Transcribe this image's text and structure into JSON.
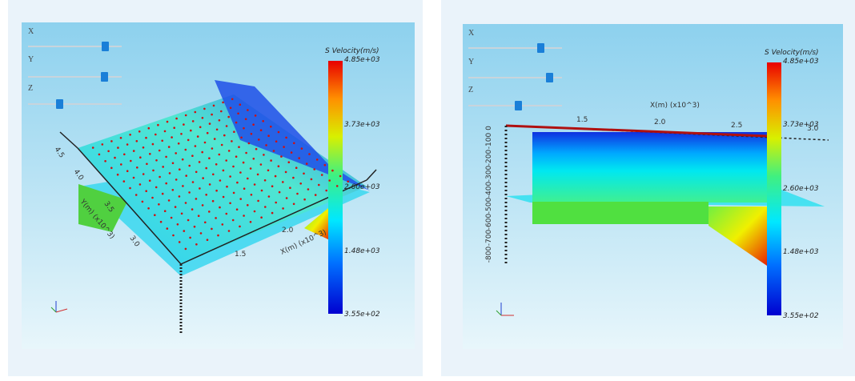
{
  "panels": [
    {
      "sliders": [
        "X",
        "Y",
        "Z"
      ],
      "colorbar": {
        "title": "S Velocity(m/s)",
        "labels": [
          "4.85e+03",
          "3.73e+03",
          "2.60e+03",
          "1.48e+03",
          "3.55e+02"
        ]
      },
      "axes": {
        "x_title": "X(m) (x10^3)",
        "x_ticks": [
          "1.5",
          "2.0"
        ],
        "y_title": "Y(m) (x10^3)",
        "y_ticks": [
          "4.5",
          "4.0",
          "3.5",
          "3.0"
        ]
      }
    },
    {
      "sliders": [
        "X",
        "Y",
        "Z"
      ],
      "colorbar": {
        "title": "S Velocity(m/s)",
        "labels": [
          "4.85e+03",
          "3.73e+03",
          "2.60e+03",
          "1.48e+03",
          "3.55e+02"
        ]
      },
      "axes": {
        "x_title": "X(m) (x10^3)",
        "x_ticks": [
          "1.5",
          "2.0",
          "2.5",
          "3.0"
        ],
        "z_ticks": [
          "0",
          "-100",
          "-200",
          "-300",
          "-400",
          "-500",
          "-600",
          "-700",
          "-800"
        ]
      }
    }
  ]
}
